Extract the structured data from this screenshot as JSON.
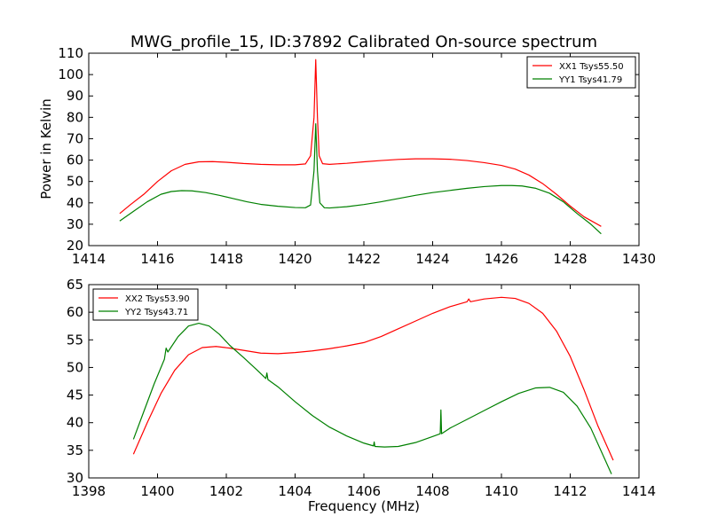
{
  "chart_data": {
    "title": "MWG_profile_15, ID:37892 Calibrated On-source spectrum",
    "xlabel": "Frequency (MHz)",
    "subplots": [
      {
        "type": "line",
        "ylabel": "Power in Kelvin",
        "xlim": [
          1414,
          1430
        ],
        "ylim": [
          20,
          110
        ],
        "xticks": [
          1414,
          1416,
          1418,
          1420,
          1422,
          1424,
          1426,
          1428,
          1430
        ],
        "yticks": [
          20,
          30,
          40,
          50,
          60,
          70,
          80,
          90,
          100,
          110
        ],
        "legend_position": "top-right",
        "series": [
          {
            "name": "XX1 Tsys55.50",
            "color": "#ff0000",
            "x": [
              1414.9,
              1415.2,
              1415.6,
              1416.0,
              1416.4,
              1416.8,
              1417.2,
              1417.6,
              1418.0,
              1418.5,
              1419.0,
              1419.5,
              1420.0,
              1420.3,
              1420.45,
              1420.55,
              1420.6,
              1420.65,
              1420.7,
              1420.8,
              1421.0,
              1421.5,
              1422.0,
              1422.5,
              1423.0,
              1423.5,
              1424.0,
              1424.5,
              1425.0,
              1425.5,
              1426.0,
              1426.4,
              1426.8,
              1427.2,
              1427.6,
              1428.0,
              1428.4,
              1428.9
            ],
            "values": [
              35,
              39,
              44,
              50,
              55,
              58,
              59.2,
              59.3,
              59,
              58.4,
              58,
              57.8,
              57.8,
              58.2,
              62,
              80,
              107,
              80,
              62,
              58.3,
              58,
              58.5,
              59.2,
              59.8,
              60.3,
              60.6,
              60.6,
              60.4,
              59.8,
              58.8,
              57.5,
              55.8,
              53,
              49,
              44,
              38.5,
              33.5,
              29
            ]
          },
          {
            "name": "YY1 Tsys41.79",
            "color": "#008000",
            "x": [
              1414.9,
              1415.3,
              1415.7,
              1416.1,
              1416.4,
              1416.7,
              1417.0,
              1417.4,
              1417.8,
              1418.2,
              1418.6,
              1419.0,
              1419.5,
              1420.0,
              1420.3,
              1420.45,
              1420.55,
              1420.6,
              1420.65,
              1420.72,
              1420.85,
              1421.0,
              1421.5,
              1422.0,
              1422.5,
              1423.0,
              1423.5,
              1424.0,
              1424.5,
              1425.0,
              1425.5,
              1426.0,
              1426.3,
              1426.6,
              1427.0,
              1427.4,
              1427.8,
              1428.2,
              1428.6,
              1428.9
            ],
            "values": [
              31.5,
              36,
              40.5,
              44,
              45.3,
              45.7,
              45.6,
              44.8,
              43.5,
              42,
              40.5,
              39.3,
              38.4,
              37.8,
              37.7,
              39,
              55,
              77,
              55,
              40,
              37.7,
              37.6,
              38.2,
              39.2,
              40.5,
              42,
              43.5,
              44.8,
              45.8,
              46.8,
              47.6,
              48.1,
              48.1,
              47.9,
              46.8,
              44.5,
              40.5,
              35,
              30,
              25.5
            ]
          }
        ]
      },
      {
        "type": "line",
        "ylabel": "",
        "xlim": [
          1398,
          1414
        ],
        "ylim": [
          30,
          65
        ],
        "xticks": [
          1398,
          1400,
          1402,
          1404,
          1406,
          1408,
          1410,
          1412,
          1414
        ],
        "yticks": [
          30,
          35,
          40,
          45,
          50,
          55,
          60,
          65
        ],
        "legend_position": "top-left",
        "series": [
          {
            "name": "XX2 Tsys53.90",
            "color": "#ff0000",
            "x": [
              1399.3,
              1399.7,
              1400.1,
              1400.5,
              1400.9,
              1401.3,
              1401.7,
              1402.1,
              1402.5,
              1403.0,
              1403.5,
              1404.0,
              1404.5,
              1405.0,
              1405.5,
              1406.0,
              1406.5,
              1407.0,
              1407.5,
              1408.0,
              1408.5,
              1409.0,
              1409.05,
              1409.1,
              1409.5,
              1410.0,
              1410.4,
              1410.8,
              1411.2,
              1411.6,
              1412.0,
              1412.4,
              1412.8,
              1413.25
            ],
            "values": [
              34.3,
              40,
              45.3,
              49.5,
              52.3,
              53.6,
              53.8,
              53.5,
              53.1,
              52.6,
              52.5,
              52.7,
              53,
              53.4,
              53.9,
              54.5,
              55.6,
              57,
              58.4,
              59.8,
              61,
              61.9,
              62.4,
              61.9,
              62.4,
              62.7,
              62.5,
              61.6,
              59.8,
              56.6,
              52,
              46,
              39.5,
              33.2
            ]
          },
          {
            "name": "YY2 Tsys43.71",
            "color": "#008000",
            "x": [
              1399.3,
              1399.6,
              1399.9,
              1400.2,
              1400.25,
              1400.3,
              1400.6,
              1400.9,
              1401.2,
              1401.5,
              1401.8,
              1402.1,
              1402.5,
              1402.9,
              1403.15,
              1403.18,
              1403.21,
              1403.5,
              1404.0,
              1404.5,
              1405.0,
              1405.5,
              1406.0,
              1406.28,
              1406.3,
              1406.32,
              1406.6,
              1407.0,
              1407.5,
              1408.0,
              1408.22,
              1408.24,
              1408.26,
              1408.5,
              1409.0,
              1409.5,
              1410.0,
              1410.5,
              1411.0,
              1411.4,
              1411.8,
              1412.2,
              1412.6,
              1413.2
            ],
            "values": [
              37,
              42,
              47,
              51.5,
              53.5,
              52.8,
              55.6,
              57.5,
              58,
              57.5,
              56,
              54,
              51.8,
              49.5,
              48,
              49,
              47.8,
              46.5,
              43.8,
              41.3,
              39.2,
              37.6,
              36.3,
              35.8,
              36.5,
              35.7,
              35.6,
              35.7,
              36.4,
              37.5,
              38,
              42.3,
              38,
              39,
              40.6,
              42.2,
              43.8,
              45.3,
              46.3,
              46.4,
              45.5,
              43,
              39,
              30.7
            ]
          }
        ]
      }
    ]
  }
}
